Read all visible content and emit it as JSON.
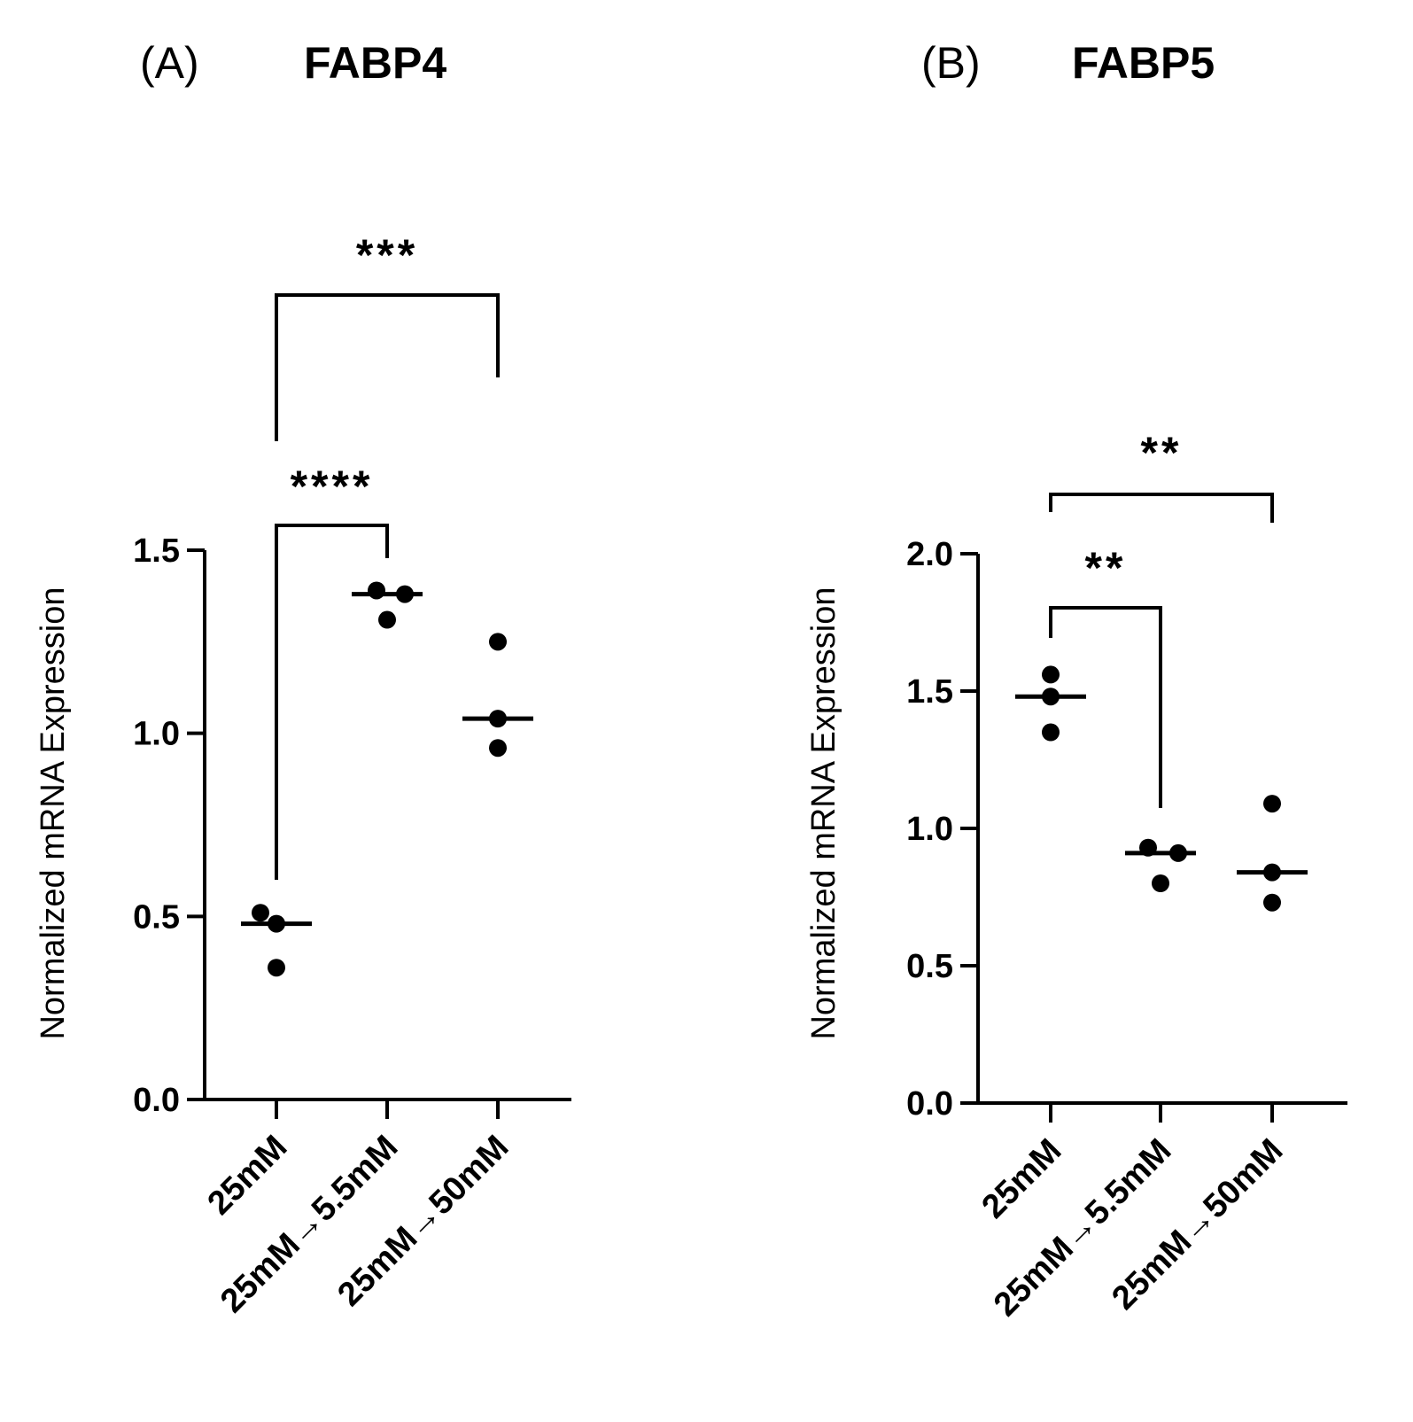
{
  "chart_data": [
    {
      "type": "scatter",
      "panel": "(A)",
      "title": "FABP4",
      "ylabel": "Normalized mRNA Expression",
      "xlabel": "",
      "ylim": [
        0,
        1.5
      ],
      "yticks": [
        "0.0",
        "0.5",
        "1.0",
        "1.5"
      ],
      "categories": [
        "25mM",
        "25mM→5.5mM",
        "25mM→50mM"
      ],
      "series": [
        {
          "category": "25mM",
          "points": [
            0.51,
            0.48,
            0.36
          ],
          "median": 0.48
        },
        {
          "category": "25mM→5.5mM",
          "points": [
            1.39,
            1.38,
            1.31
          ],
          "median": 1.38
        },
        {
          "category": "25mM→50mM",
          "points": [
            1.25,
            1.04,
            0.96
          ],
          "median": 1.04
        }
      ],
      "comparisons": [
        {
          "from": 0,
          "to": 1,
          "label": "****"
        },
        {
          "from": 0,
          "to": 2,
          "label": "***"
        }
      ]
    },
    {
      "type": "scatter",
      "panel": "(B)",
      "title": "FABP5",
      "ylabel": "Normalized mRNA Expression",
      "xlabel": "",
      "ylim": [
        0,
        2.0
      ],
      "yticks": [
        "0.0",
        "0.5",
        "1.0",
        "1.5",
        "2.0"
      ],
      "categories": [
        "25mM",
        "25mM→5.5mM",
        "25mM→50mM"
      ],
      "series": [
        {
          "category": "25mM",
          "points": [
            1.56,
            1.48,
            1.35
          ],
          "median": 1.48
        },
        {
          "category": "25mM→5.5mM",
          "points": [
            0.93,
            0.91,
            0.8
          ],
          "median": 0.91
        },
        {
          "category": "25mM→50mM",
          "points": [
            1.09,
            0.84,
            0.73
          ],
          "median": 0.84
        }
      ],
      "comparisons": [
        {
          "from": 0,
          "to": 1,
          "label": "**"
        },
        {
          "from": 0,
          "to": 2,
          "label": "**"
        }
      ]
    }
  ]
}
